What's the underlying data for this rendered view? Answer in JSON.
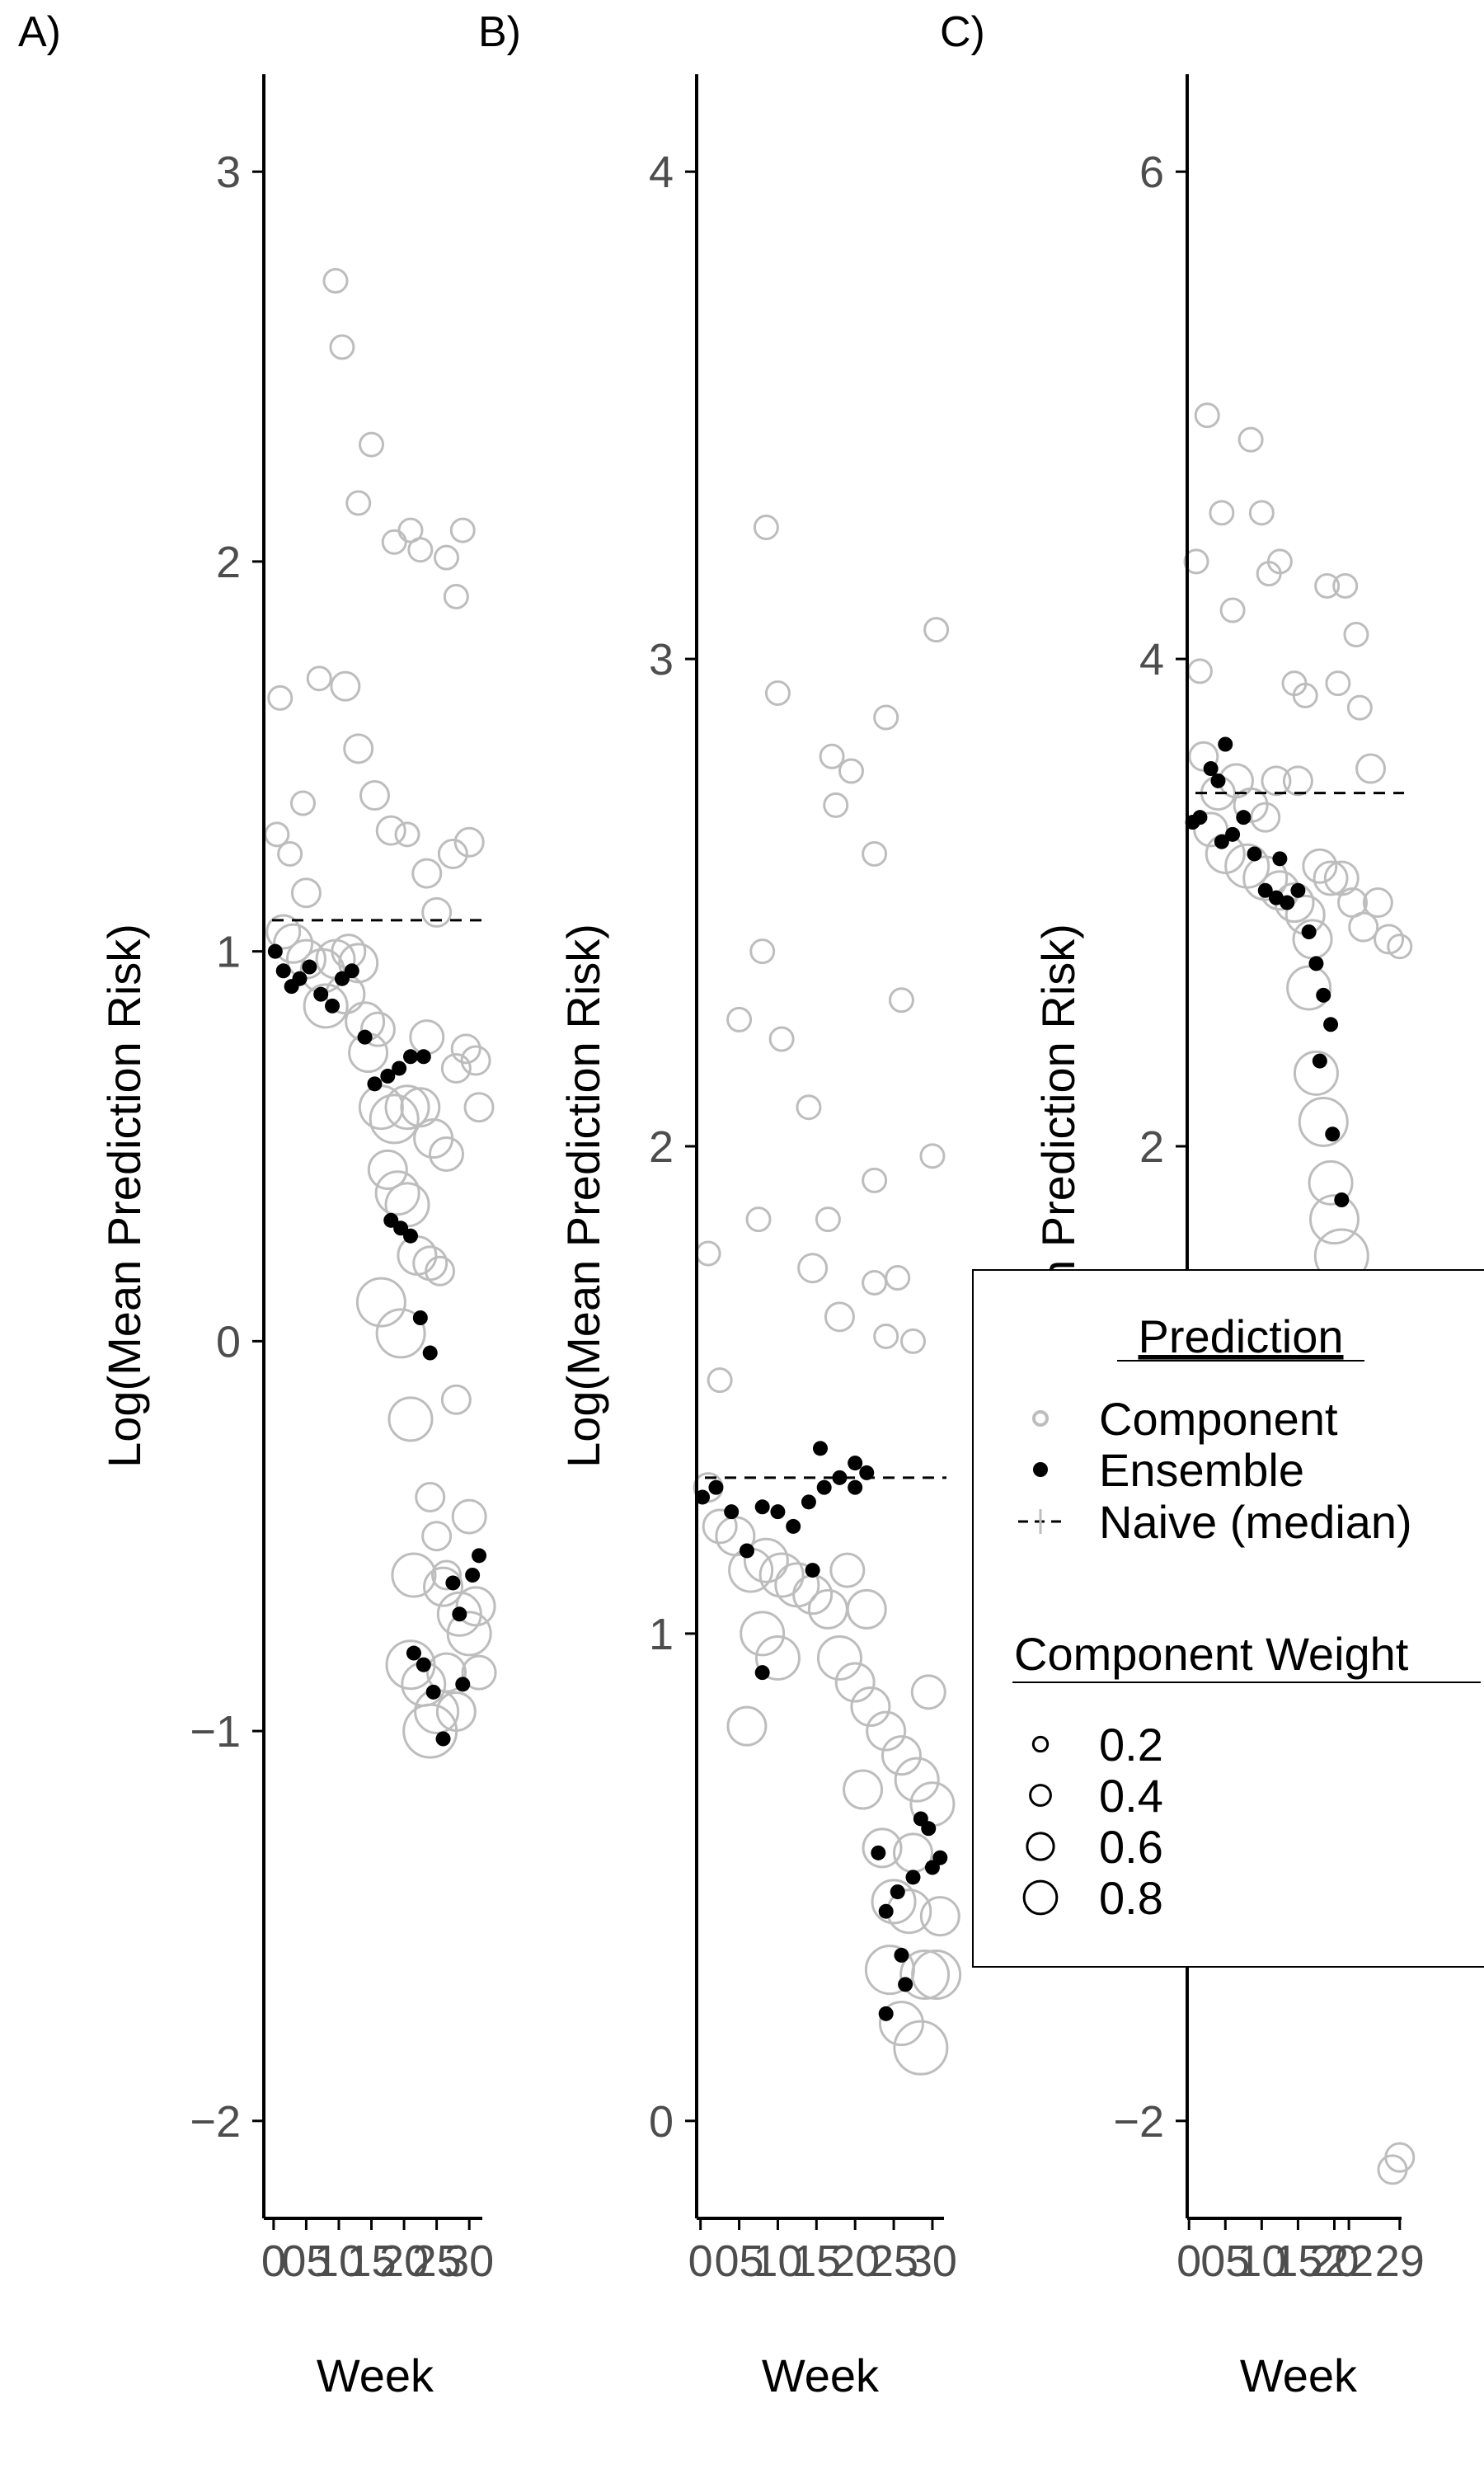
{
  "chart_data": [
    {
      "panel": "A)",
      "type": "scatter",
      "xlabel": "Week",
      "ylabel": "Log(Mean Prediction Risk)",
      "x_ticks": [
        "0",
        "05",
        "10",
        "15",
        "20",
        "25",
        "30"
      ],
      "x_tick_values": [
        0,
        1,
        2,
        3,
        4,
        5,
        6
      ],
      "xlim": [
        -0.3,
        6.4
      ],
      "y_ticks": [
        3,
        2,
        1,
        0,
        -1,
        -2
      ],
      "y_tick_labels": [
        "3",
        "2",
        "1",
        "0",
        "−1",
        "−2"
      ],
      "ylim": [
        -2.25,
        3.25
      ],
      "naive_median": 1.08,
      "ensemble": [
        [
          0.05,
          1.0
        ],
        [
          0.3,
          0.95
        ],
        [
          0.55,
          0.91
        ],
        [
          0.8,
          0.93
        ],
        [
          1.1,
          0.96
        ],
        [
          1.45,
          0.89
        ],
        [
          1.8,
          0.86
        ],
        [
          2.1,
          0.93
        ],
        [
          2.4,
          0.95
        ],
        [
          2.8,
          0.78
        ],
        [
          3.1,
          0.66
        ],
        [
          3.5,
          0.68
        ],
        [
          3.85,
          0.7
        ],
        [
          4.2,
          0.73
        ],
        [
          4.6,
          0.73
        ],
        [
          3.6,
          0.31
        ],
        [
          3.9,
          0.29
        ],
        [
          4.2,
          0.27
        ],
        [
          4.5,
          0.06
        ],
        [
          4.8,
          -0.03
        ],
        [
          4.3,
          -0.8
        ],
        [
          4.6,
          -0.83
        ],
        [
          4.9,
          -0.9
        ],
        [
          5.2,
          -1.02
        ],
        [
          5.5,
          -0.62
        ],
        [
          5.8,
          -0.88
        ],
        [
          6.1,
          -0.6
        ],
        [
          6.3,
          -0.55
        ],
        [
          5.7,
          -0.7
        ]
      ],
      "component": [
        [
          0.1,
          1.3,
          0.2
        ],
        [
          0.5,
          1.25,
          0.2
        ],
        [
          1.0,
          1.15,
          0.3
        ],
        [
          1.4,
          1.7,
          0.2
        ],
        [
          1.9,
          2.72,
          0.2
        ],
        [
          2.1,
          2.55,
          0.2
        ],
        [
          2.6,
          2.15,
          0.2
        ],
        [
          3.0,
          2.3,
          0.2
        ],
        [
          3.7,
          2.05,
          0.2
        ],
        [
          4.2,
          2.08,
          0.2
        ],
        [
          4.5,
          2.03,
          0.2
        ],
        [
          5.3,
          2.01,
          0.2
        ],
        [
          5.6,
          1.91,
          0.2
        ],
        [
          5.8,
          2.08,
          0.2
        ],
        [
          0.2,
          1.65,
          0.2
        ],
        [
          0.9,
          1.38,
          0.2
        ],
        [
          2.2,
          1.68,
          0.3
        ],
        [
          2.6,
          1.52,
          0.3
        ],
        [
          3.1,
          1.4,
          0.3
        ],
        [
          3.6,
          1.31,
          0.3
        ],
        [
          4.1,
          1.3,
          0.2
        ],
        [
          4.7,
          1.2,
          0.3
        ],
        [
          5.0,
          1.1,
          0.3
        ],
        [
          5.5,
          1.25,
          0.3
        ],
        [
          6.0,
          1.28,
          0.3
        ],
        [
          0.3,
          1.05,
          0.4
        ],
        [
          0.6,
          1.02,
          0.5
        ],
        [
          1.0,
          0.98,
          0.5
        ],
        [
          1.5,
          0.95,
          0.6
        ],
        [
          1.9,
          0.98,
          0.5
        ],
        [
          2.3,
          1.0,
          0.4
        ],
        [
          2.6,
          0.97,
          0.5
        ],
        [
          2.2,
          0.89,
          0.5
        ],
        [
          1.6,
          0.86,
          0.6
        ],
        [
          2.8,
          0.82,
          0.5
        ],
        [
          3.2,
          0.8,
          0.4
        ],
        [
          2.9,
          0.74,
          0.5
        ],
        [
          3.3,
          0.6,
          0.6
        ],
        [
          3.7,
          0.57,
          0.7
        ],
        [
          4.1,
          0.6,
          0.6
        ],
        [
          4.5,
          0.6,
          0.5
        ],
        [
          4.9,
          0.52,
          0.5
        ],
        [
          5.3,
          0.48,
          0.4
        ],
        [
          5.6,
          0.7,
          0.3
        ],
        [
          5.9,
          0.75,
          0.3
        ],
        [
          6.2,
          0.72,
          0.3
        ],
        [
          6.3,
          0.6,
          0.3
        ],
        [
          4.7,
          0.78,
          0.4
        ],
        [
          3.5,
          0.44,
          0.5
        ],
        [
          3.8,
          0.38,
          0.6
        ],
        [
          4.1,
          0.35,
          0.6
        ],
        [
          4.4,
          0.22,
          0.5
        ],
        [
          4.8,
          0.2,
          0.4
        ],
        [
          5.1,
          0.18,
          0.3
        ],
        [
          3.3,
          0.1,
          0.7
        ],
        [
          3.9,
          0.02,
          0.7
        ],
        [
          4.2,
          -0.2,
          0.6
        ],
        [
          4.8,
          -0.4,
          0.3
        ],
        [
          5.0,
          -0.5,
          0.3
        ],
        [
          5.3,
          -0.6,
          0.3
        ],
        [
          5.6,
          -0.15,
          0.3
        ],
        [
          6.0,
          -0.45,
          0.4
        ],
        [
          4.2,
          -0.83,
          0.7
        ],
        [
          4.6,
          -0.88,
          0.6
        ],
        [
          5.0,
          -0.95,
          0.6
        ],
        [
          5.3,
          -0.85,
          0.5
        ],
        [
          5.7,
          -0.7,
          0.6
        ],
        [
          6.0,
          -0.75,
          0.6
        ],
        [
          6.2,
          -0.68,
          0.5
        ],
        [
          4.8,
          -1.0,
          0.8
        ],
        [
          5.6,
          -0.95,
          0.5
        ],
        [
          6.3,
          -0.85,
          0.4
        ],
        [
          5.2,
          -0.63,
          0.5
        ],
        [
          4.3,
          -0.6,
          0.6
        ]
      ]
    },
    {
      "panel": "B)",
      "type": "scatter",
      "xlabel": "Week",
      "ylabel": "Log(Mean Prediction Risk)",
      "x_ticks": [
        "0",
        "05",
        "10",
        "15",
        "20",
        "25",
        "30"
      ],
      "x_tick_values": [
        0,
        1,
        2,
        3,
        4,
        5,
        6
      ],
      "xlim": [
        -0.1,
        6.3
      ],
      "y_ticks": [
        4,
        3,
        2,
        1,
        0
      ],
      "y_tick_labels": [
        "4",
        "3",
        "2",
        "1",
        "0"
      ],
      "ylim": [
        -0.2,
        4.2
      ],
      "naive_median": 1.32,
      "ensemble": [
        [
          0.05,
          1.28
        ],
        [
          0.4,
          1.3
        ],
        [
          0.8,
          1.25
        ],
        [
          1.2,
          1.17
        ],
        [
          1.6,
          1.26
        ],
        [
          2.0,
          1.25
        ],
        [
          2.4,
          1.22
        ],
        [
          2.8,
          1.27
        ],
        [
          3.2,
          1.3
        ],
        [
          3.6,
          1.32
        ],
        [
          4.0,
          1.3
        ],
        [
          3.1,
          1.38
        ],
        [
          2.9,
          1.13
        ],
        [
          1.6,
          0.92
        ],
        [
          4.0,
          1.35
        ],
        [
          4.3,
          1.33
        ],
        [
          4.8,
          0.43
        ],
        [
          5.1,
          0.47
        ],
        [
          5.5,
          0.5
        ],
        [
          5.9,
          0.6
        ],
        [
          4.6,
          0.55
        ],
        [
          5.2,
          0.34
        ],
        [
          5.7,
          0.62
        ],
        [
          5.3,
          0.28
        ],
        [
          6.0,
          0.52
        ],
        [
          4.8,
          0.22
        ],
        [
          6.2,
          0.54
        ]
      ],
      "component": [
        [
          0.2,
          1.78,
          0.2
        ],
        [
          1.7,
          3.27,
          0.2
        ],
        [
          2.0,
          2.93,
          0.2
        ],
        [
          3.4,
          2.8,
          0.2
        ],
        [
          3.9,
          2.77,
          0.2
        ],
        [
          4.5,
          2.6,
          0.2
        ],
        [
          4.8,
          2.88,
          0.2
        ],
        [
          3.5,
          2.7,
          0.2
        ],
        [
          5.2,
          2.3,
          0.2
        ],
        [
          6.1,
          3.06,
          0.2
        ],
        [
          1.6,
          2.4,
          0.2
        ],
        [
          2.1,
          2.22,
          0.2
        ],
        [
          2.8,
          2.08,
          0.2
        ],
        [
          3.3,
          1.85,
          0.2
        ],
        [
          4.5,
          1.93,
          0.2
        ],
        [
          4.8,
          1.61,
          0.2
        ],
        [
          5.5,
          1.6,
          0.2
        ],
        [
          6.0,
          1.98,
          0.2
        ],
        [
          1.0,
          2.26,
          0.2
        ],
        [
          2.9,
          1.75,
          0.3
        ],
        [
          3.6,
          1.65,
          0.3
        ],
        [
          4.5,
          1.72,
          0.2
        ],
        [
          5.1,
          1.73,
          0.2
        ],
        [
          0.5,
          1.52,
          0.2
        ],
        [
          1.5,
          1.85,
          0.2
        ],
        [
          0.2,
          1.3,
          0.3
        ],
        [
          0.5,
          1.22,
          0.4
        ],
        [
          0.9,
          1.2,
          0.5
        ],
        [
          1.3,
          1.13,
          0.6
        ],
        [
          1.7,
          1.15,
          0.6
        ],
        [
          2.1,
          1.12,
          0.6
        ],
        [
          2.5,
          1.1,
          0.6
        ],
        [
          2.9,
          1.08,
          0.5
        ],
        [
          3.3,
          1.05,
          0.5
        ],
        [
          3.6,
          0.95,
          0.6
        ],
        [
          4.0,
          0.9,
          0.5
        ],
        [
          4.4,
          0.85,
          0.5
        ],
        [
          4.8,
          0.8,
          0.5
        ],
        [
          5.2,
          0.75,
          0.5
        ],
        [
          5.6,
          0.7,
          0.6
        ],
        [
          6.0,
          0.65,
          0.6
        ],
        [
          1.6,
          1.0,
          0.6
        ],
        [
          2.0,
          0.95,
          0.6
        ],
        [
          1.2,
          0.81,
          0.5
        ],
        [
          4.2,
          0.68,
          0.5
        ],
        [
          4.7,
          0.56,
          0.5
        ],
        [
          5.0,
          0.45,
          0.6
        ],
        [
          5.4,
          0.43,
          0.6
        ],
        [
          5.8,
          0.3,
          0.7
        ],
        [
          6.2,
          0.42,
          0.5
        ],
        [
          4.9,
          0.31,
          0.7
        ],
        [
          5.2,
          0.2,
          0.6
        ],
        [
          5.7,
          0.15,
          0.8
        ],
        [
          6.1,
          0.3,
          0.7
        ],
        [
          5.5,
          0.55,
          0.5
        ],
        [
          5.9,
          0.88,
          0.4
        ],
        [
          3.8,
          1.13,
          0.4
        ],
        [
          4.3,
          1.05,
          0.5
        ]
      ]
    },
    {
      "panel": "C)",
      "type": "scatter",
      "xlabel": "Week",
      "ylabel": "Log(Mean Prediction Risk)",
      "x_ticks": [
        "0",
        "05",
        "10",
        "15",
        "20",
        "22",
        "29"
      ],
      "x_tick_values": [
        0,
        1,
        2,
        3,
        4,
        4.4,
        5.8
      ],
      "xlim": [
        -0.05,
        5.85
      ],
      "y_ticks": [
        6,
        4,
        2,
        -2
      ],
      "y_tick_labels": [
        "6",
        "4",
        "2",
        "−2"
      ],
      "ylim": [
        -2.4,
        6.4
      ],
      "naive_median": 3.45,
      "ensemble": [
        [
          0.1,
          3.33
        ],
        [
          0.3,
          3.35
        ],
        [
          0.6,
          3.55
        ],
        [
          0.8,
          3.5
        ],
        [
          1.0,
          3.65
        ],
        [
          1.2,
          3.28
        ],
        [
          1.5,
          3.35
        ],
        [
          1.8,
          3.2
        ],
        [
          2.1,
          3.05
        ],
        [
          2.4,
          3.02
        ],
        [
          2.7,
          3.0
        ],
        [
          3.0,
          3.05
        ],
        [
          3.3,
          2.88
        ],
        [
          3.5,
          2.75
        ],
        [
          3.7,
          2.62
        ],
        [
          3.9,
          2.5
        ],
        [
          3.6,
          2.35
        ],
        [
          3.95,
          2.05
        ],
        [
          4.2,
          1.78
        ],
        [
          2.5,
          3.18
        ],
        [
          0.9,
          3.25
        ]
      ],
      "component": [
        [
          0.2,
          4.4,
          0.2
        ],
        [
          0.5,
          5.0,
          0.2
        ],
        [
          0.9,
          4.6,
          0.2
        ],
        [
          1.2,
          4.2,
          0.2
        ],
        [
          1.7,
          4.9,
          0.2
        ],
        [
          2.2,
          4.35,
          0.2
        ],
        [
          2.5,
          4.4,
          0.2
        ],
        [
          3.8,
          4.3,
          0.2
        ],
        [
          4.3,
          4.3,
          0.2
        ],
        [
          4.6,
          4.1,
          0.2
        ],
        [
          0.3,
          3.95,
          0.2
        ],
        [
          2.0,
          4.6,
          0.2
        ],
        [
          2.9,
          3.9,
          0.2
        ],
        [
          3.2,
          3.85,
          0.2
        ],
        [
          4.1,
          3.9,
          0.2
        ],
        [
          4.7,
          3.8,
          0.2
        ],
        [
          0.4,
          3.6,
          0.3
        ],
        [
          0.8,
          3.45,
          0.4
        ],
        [
          1.3,
          3.5,
          0.4
        ],
        [
          1.7,
          3.4,
          0.4
        ],
        [
          2.1,
          3.35,
          0.3
        ],
        [
          0.6,
          3.3,
          0.4
        ],
        [
          1.0,
          3.2,
          0.5
        ],
        [
          1.6,
          3.15,
          0.6
        ],
        [
          2.1,
          3.1,
          0.6
        ],
        [
          2.5,
          3.05,
          0.5
        ],
        [
          2.9,
          3.0,
          0.5
        ],
        [
          3.2,
          2.95,
          0.5
        ],
        [
          3.4,
          2.85,
          0.5
        ],
        [
          3.6,
          3.15,
          0.4
        ],
        [
          3.9,
          3.1,
          0.4
        ],
        [
          4.2,
          3.1,
          0.4
        ],
        [
          4.5,
          3.0,
          0.3
        ],
        [
          4.8,
          2.9,
          0.3
        ],
        [
          5.2,
          3.0,
          0.3
        ],
        [
          5.5,
          2.85,
          0.3
        ],
        [
          5.8,
          2.82,
          0.2
        ],
        [
          3.3,
          2.65,
          0.6
        ],
        [
          3.5,
          2.3,
          0.6
        ],
        [
          3.7,
          2.1,
          0.7
        ],
        [
          3.9,
          1.85,
          0.6
        ],
        [
          4.0,
          1.7,
          0.7
        ],
        [
          4.2,
          1.55,
          0.8
        ],
        [
          5.6,
          -2.2,
          0.3
        ],
        [
          5.8,
          -2.15,
          0.3
        ],
        [
          2.4,
          3.5,
          0.3
        ],
        [
          3.0,
          3.5,
          0.3
        ],
        [
          5.0,
          3.55,
          0.3
        ]
      ]
    }
  ],
  "panels": [
    {
      "label": "A)",
      "xlabel": "Week",
      "ylabel": "Log(Mean Prediction Risk)"
    },
    {
      "label": "B)",
      "xlabel": "Week",
      "ylabel": "Log(Mean Prediction Risk)"
    },
    {
      "label": "C)",
      "xlabel": "Week",
      "ylabel": "Log(Mean Prediction Risk)"
    }
  ],
  "legend": {
    "prediction_title": "Prediction",
    "component_label": "Component",
    "ensemble_label": "Ensemble",
    "naive_label": "Naive (median)",
    "weight_title": "Component Weight",
    "weight_values": [
      "0.2",
      "0.4",
      "0.6",
      "0.8"
    ],
    "weight_numbers": [
      0.2,
      0.4,
      0.6,
      0.8
    ]
  },
  "colors": {
    "component": "#bdbdbd",
    "ensemble": "#000000",
    "naive": "#000000",
    "axis": "#000000",
    "tick_text": "#4d4d4d"
  }
}
